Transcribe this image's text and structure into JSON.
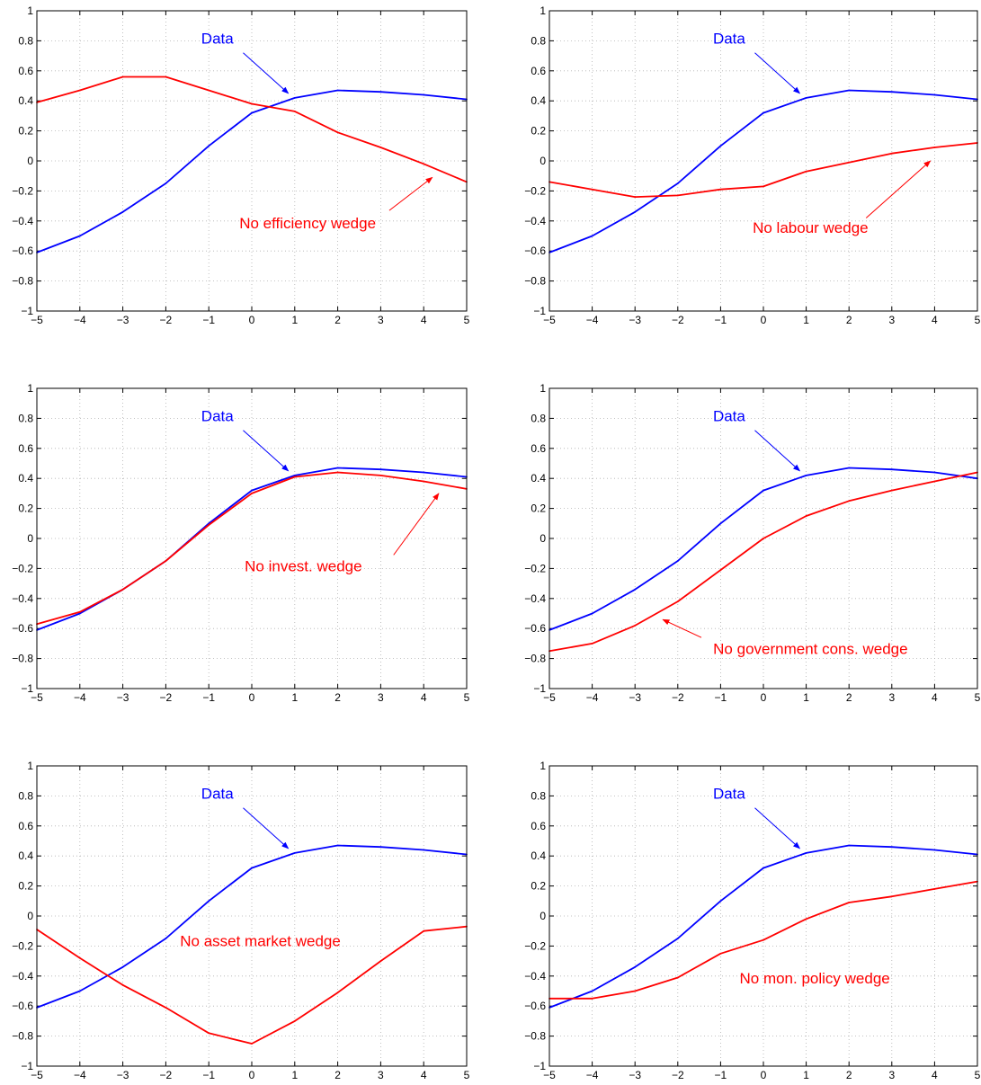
{
  "colors": {
    "data_series": "#0000ff",
    "counterfactual_series": "#ff0000",
    "axes": "#000000",
    "grid": "#b0b0b0"
  },
  "chart_data": [
    {
      "type": "line",
      "grid": true,
      "xlim": [
        -5,
        5
      ],
      "ylim": [
        -1,
        1
      ],
      "x_ticks": [
        "−5",
        "−4",
        "−3",
        "−2",
        "−1",
        "0",
        "1",
        "2",
        "3",
        "4",
        "5"
      ],
      "y_ticks": [
        "1",
        "0.8",
        "0.6",
        "0.4",
        "0.2",
        "0",
        "−0.2",
        "−0.4",
        "−0.6",
        "−0.8",
        "−1"
      ],
      "x": [
        -5,
        -4,
        -3,
        -2,
        -1,
        0,
        1,
        2,
        3,
        4,
        5
      ],
      "series": [
        {
          "name": "Data",
          "color": "#0000ff",
          "values": [
            -0.61,
            -0.5,
            -0.34,
            -0.15,
            0.1,
            0.32,
            0.42,
            0.47,
            0.46,
            0.44,
            0.41
          ]
        },
        {
          "name": "No efficiency wedge",
          "color": "#ff0000",
          "values": [
            0.39,
            0.47,
            0.56,
            0.56,
            0.47,
            0.38,
            0.33,
            0.19,
            0.09,
            -0.02,
            -0.14
          ]
        }
      ],
      "annotations": [
        {
          "text": "Data",
          "color": "#0000ff",
          "label_at": [
            -0.8,
            0.78
          ],
          "arrow_from": [
            -0.2,
            0.72
          ],
          "arrow_to": [
            0.85,
            0.45
          ]
        },
        {
          "text": "No efficiency wedge",
          "color": "#ff0000",
          "label_at": [
            1.3,
            -0.45
          ],
          "arrow_from": [
            3.2,
            -0.33
          ],
          "arrow_to": [
            4.2,
            -0.11
          ]
        }
      ]
    },
    {
      "type": "line",
      "grid": true,
      "xlim": [
        -5,
        5
      ],
      "ylim": [
        -1,
        1
      ],
      "x_ticks": [
        "−5",
        "−4",
        "−3",
        "−2",
        "−1",
        "0",
        "1",
        "2",
        "3",
        "4",
        "5"
      ],
      "y_ticks": [
        "1",
        "0.8",
        "0.6",
        "0.4",
        "0.2",
        "0",
        "−0.2",
        "−0.4",
        "−0.6",
        "−0.8",
        "−1"
      ],
      "x": [
        -5,
        -4,
        -3,
        -2,
        -1,
        0,
        1,
        2,
        3,
        4,
        5
      ],
      "series": [
        {
          "name": "Data",
          "color": "#0000ff",
          "values": [
            -0.61,
            -0.5,
            -0.34,
            -0.15,
            0.1,
            0.32,
            0.42,
            0.47,
            0.46,
            0.44,
            0.41
          ]
        },
        {
          "name": "No labour wedge",
          "color": "#ff0000",
          "values": [
            -0.14,
            -0.19,
            -0.24,
            -0.23,
            -0.19,
            -0.17,
            -0.07,
            -0.01,
            0.05,
            0.09,
            0.12
          ]
        }
      ],
      "annotations": [
        {
          "text": "Data",
          "color": "#0000ff",
          "label_at": [
            -0.8,
            0.78
          ],
          "arrow_from": [
            -0.2,
            0.72
          ],
          "arrow_to": [
            0.85,
            0.45
          ]
        },
        {
          "text": "No labour wedge",
          "color": "#ff0000",
          "label_at": [
            1.1,
            -0.48
          ],
          "arrow_from": [
            2.4,
            -0.38
          ],
          "arrow_to": [
            3.9,
            0.0
          ]
        }
      ]
    },
    {
      "type": "line",
      "grid": true,
      "xlim": [
        -5,
        5
      ],
      "ylim": [
        -1,
        1
      ],
      "x_ticks": [
        "−5",
        "−4",
        "−3",
        "−2",
        "−1",
        "0",
        "1",
        "2",
        "3",
        "4",
        "5"
      ],
      "y_ticks": [
        "1",
        "0.8",
        "0.6",
        "0.4",
        "0.2",
        "0",
        "−0.2",
        "−0.4",
        "−0.6",
        "−0.8",
        "−1"
      ],
      "x": [
        -5,
        -4,
        -3,
        -2,
        -1,
        0,
        1,
        2,
        3,
        4,
        5
      ],
      "series": [
        {
          "name": "Data",
          "color": "#0000ff",
          "values": [
            -0.61,
            -0.5,
            -0.34,
            -0.15,
            0.1,
            0.32,
            0.42,
            0.47,
            0.46,
            0.44,
            0.41
          ]
        },
        {
          "name": "No invest. wedge",
          "color": "#ff0000",
          "values": [
            -0.57,
            -0.49,
            -0.34,
            -0.15,
            0.09,
            0.3,
            0.41,
            0.44,
            0.42,
            0.38,
            0.33
          ]
        }
      ],
      "annotations": [
        {
          "text": "Data",
          "color": "#0000ff",
          "label_at": [
            -0.8,
            0.78
          ],
          "arrow_from": [
            -0.2,
            0.72
          ],
          "arrow_to": [
            0.85,
            0.45
          ]
        },
        {
          "text": "No invest. wedge",
          "color": "#ff0000",
          "label_at": [
            1.2,
            -0.22
          ],
          "arrow_from": [
            3.3,
            -0.11
          ],
          "arrow_to": [
            4.35,
            0.3
          ]
        }
      ]
    },
    {
      "type": "line",
      "grid": true,
      "xlim": [
        -5,
        5
      ],
      "ylim": [
        -1,
        1
      ],
      "x_ticks": [
        "−5",
        "−4",
        "−3",
        "−2",
        "−1",
        "0",
        "1",
        "2",
        "3",
        "4",
        "5"
      ],
      "y_ticks": [
        "1",
        "0.8",
        "0.6",
        "0.4",
        "0.2",
        "0",
        "−0.2",
        "−0.4",
        "−0.6",
        "−0.8",
        "−1"
      ],
      "x": [
        -5,
        -4,
        -3,
        -2,
        -1,
        0,
        1,
        2,
        3,
        4,
        5
      ],
      "series": [
        {
          "name": "Data",
          "color": "#0000ff",
          "values": [
            -0.61,
            -0.5,
            -0.34,
            -0.15,
            0.1,
            0.32,
            0.42,
            0.47,
            0.46,
            0.44,
            0.4
          ]
        },
        {
          "name": "No government cons. wedge",
          "color": "#ff0000",
          "values": [
            -0.75,
            -0.7,
            -0.58,
            -0.42,
            -0.21,
            0.0,
            0.15,
            0.25,
            0.32,
            0.38,
            0.44
          ]
        }
      ],
      "annotations": [
        {
          "text": "Data",
          "color": "#0000ff",
          "label_at": [
            -0.8,
            0.78
          ],
          "arrow_from": [
            -0.2,
            0.72
          ],
          "arrow_to": [
            0.85,
            0.45
          ]
        },
        {
          "text": "No government cons. wedge",
          "color": "#ff0000",
          "label_at": [
            1.1,
            -0.77
          ],
          "arrow_from": [
            -1.45,
            -0.66
          ],
          "arrow_to": [
            -2.35,
            -0.54
          ]
        }
      ]
    },
    {
      "type": "line",
      "grid": true,
      "xlim": [
        -5,
        5
      ],
      "ylim": [
        -1,
        1
      ],
      "x_ticks": [
        "−5",
        "−4",
        "−3",
        "−2",
        "−1",
        "0",
        "1",
        "2",
        "3",
        "4",
        "5"
      ],
      "y_ticks": [
        "1",
        "0.8",
        "0.6",
        "0.4",
        "0.2",
        "0",
        "−0.2",
        "−0.4",
        "−0.6",
        "−0.8",
        "−1"
      ],
      "x": [
        -5,
        -4,
        -3,
        -2,
        -1,
        0,
        1,
        2,
        3,
        4,
        5
      ],
      "series": [
        {
          "name": "Data",
          "color": "#0000ff",
          "values": [
            -0.61,
            -0.5,
            -0.34,
            -0.15,
            0.1,
            0.32,
            0.42,
            0.47,
            0.46,
            0.44,
            0.41
          ]
        },
        {
          "name": "No asset market wedge",
          "color": "#ff0000",
          "values": [
            -0.09,
            -0.28,
            -0.46,
            -0.61,
            -0.78,
            -0.85,
            -0.7,
            -0.51,
            -0.3,
            -0.1,
            -0.07
          ]
        }
      ],
      "annotations": [
        {
          "text": "Data",
          "color": "#0000ff",
          "label_at": [
            -0.8,
            0.78
          ],
          "arrow_from": [
            -0.2,
            0.72
          ],
          "arrow_to": [
            0.85,
            0.45
          ]
        },
        {
          "text": "No asset market wedge",
          "color": "#ff0000",
          "label_at": [
            0.2,
            -0.2
          ],
          "arrow_from": null,
          "arrow_to": null
        }
      ]
    },
    {
      "type": "line",
      "grid": true,
      "xlim": [
        -5,
        5
      ],
      "ylim": [
        -1,
        1
      ],
      "x_ticks": [
        "−5",
        "−4",
        "−3",
        "−2",
        "−1",
        "0",
        "1",
        "2",
        "3",
        "4",
        "5"
      ],
      "y_ticks": [
        "1",
        "0.8",
        "0.6",
        "0.4",
        "0.2",
        "0",
        "−0.2",
        "−0.4",
        "−0.6",
        "−0.8",
        "−1"
      ],
      "x": [
        -5,
        -4,
        -3,
        -2,
        -1,
        0,
        1,
        2,
        3,
        4,
        5
      ],
      "series": [
        {
          "name": "Data",
          "color": "#0000ff",
          "values": [
            -0.61,
            -0.5,
            -0.34,
            -0.15,
            0.1,
            0.32,
            0.42,
            0.47,
            0.46,
            0.44,
            0.41
          ]
        },
        {
          "name": "No mon. policy wedge",
          "color": "#ff0000",
          "values": [
            -0.55,
            -0.55,
            -0.5,
            -0.41,
            -0.25,
            -0.16,
            -0.02,
            0.09,
            0.13,
            0.18,
            0.23
          ]
        }
      ],
      "annotations": [
        {
          "text": "Data",
          "color": "#0000ff",
          "label_at": [
            -0.8,
            0.78
          ],
          "arrow_from": [
            -0.2,
            0.72
          ],
          "arrow_to": [
            0.85,
            0.45
          ]
        },
        {
          "text": "No mon. policy wedge",
          "color": "#ff0000",
          "label_at": [
            1.2,
            -0.45
          ],
          "arrow_from": null,
          "arrow_to": null
        }
      ]
    }
  ]
}
